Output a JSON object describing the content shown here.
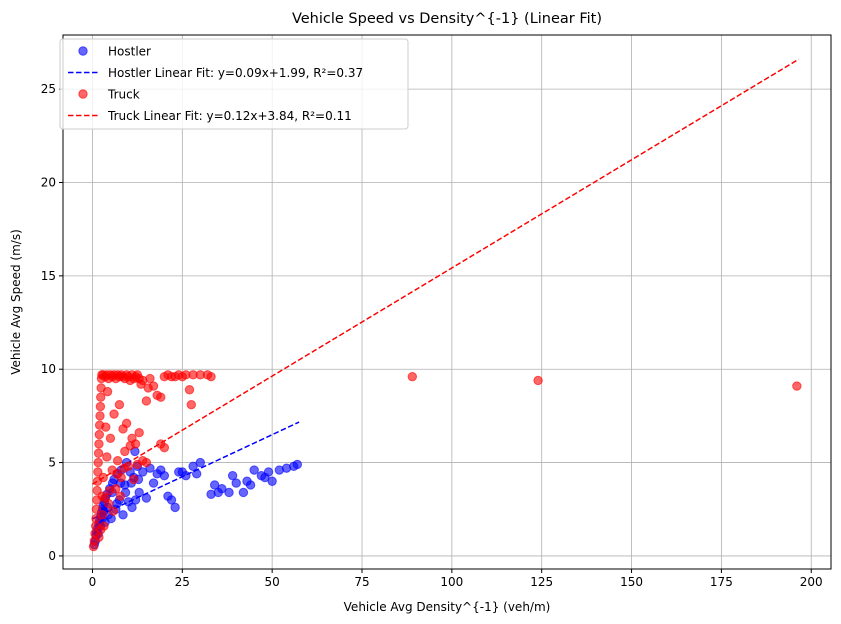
{
  "chart_data": {
    "type": "scatter",
    "title": "Vehicle Speed vs Density^{-1} (Linear Fit)",
    "xlabel": "Vehicle Avg Density^{-1} (veh/m)",
    "ylabel": "Vehicle Avg Speed (m/s)",
    "xlim": [
      -8.2,
      205.5
    ],
    "ylim": [
      -0.7,
      27.9
    ],
    "xticks": [
      0,
      25,
      50,
      75,
      100,
      125,
      150,
      175,
      200
    ],
    "yticks": [
      0,
      5,
      10,
      15,
      20,
      25
    ],
    "grid": true,
    "legend_position": "top-left",
    "series": [
      {
        "name": "Hostler",
        "kind": "scatter",
        "color": "#0000ff",
        "points": [
          [
            0.5,
            0.6
          ],
          [
            0.8,
            0.8
          ],
          [
            1.0,
            1.1
          ],
          [
            1.2,
            1.3
          ],
          [
            1.5,
            1.5
          ],
          [
            1.8,
            1.7
          ],
          [
            2.0,
            1.9
          ],
          [
            2.3,
            2.1
          ],
          [
            2.5,
            2.3
          ],
          [
            2.8,
            2.5
          ],
          [
            3.0,
            2.7
          ],
          [
            3.3,
            2.9
          ],
          [
            3.6,
            3.1
          ],
          [
            4.0,
            3.3
          ],
          [
            4.4,
            2.2
          ],
          [
            4.8,
            3.6
          ],
          [
            5.2,
            2.0
          ],
          [
            5.6,
            3.9
          ],
          [
            6.0,
            4.1
          ],
          [
            6.5,
            2.5
          ],
          [
            7.0,
            4.4
          ],
          [
            7.5,
            3.0
          ],
          [
            8.0,
            4.6
          ],
          [
            8.5,
            2.2
          ],
          [
            9.0,
            3.8
          ],
          [
            9.5,
            5.0
          ],
          [
            10.0,
            2.9
          ],
          [
            10.5,
            4.5
          ],
          [
            11.0,
            2.6
          ],
          [
            11.5,
            4.2
          ],
          [
            12.0,
            3.0
          ],
          [
            12.5,
            4.8
          ],
          [
            13.0,
            3.4
          ],
          [
            14.0,
            4.5
          ],
          [
            15.0,
            3.1
          ],
          [
            16.0,
            4.7
          ],
          [
            17.0,
            3.9
          ],
          [
            18.0,
            4.4
          ],
          [
            19.0,
            4.6
          ],
          [
            20.0,
            4.3
          ],
          [
            21.0,
            3.2
          ],
          [
            22.0,
            3.0
          ],
          [
            23.0,
            2.6
          ],
          [
            24.0,
            4.5
          ],
          [
            25.0,
            4.5
          ],
          [
            26.0,
            4.3
          ],
          [
            28.0,
            4.8
          ],
          [
            29.0,
            4.4
          ],
          [
            30.0,
            5.0
          ],
          [
            33.0,
            3.3
          ],
          [
            34.0,
            3.8
          ],
          [
            35.0,
            3.4
          ],
          [
            36.0,
            3.6
          ],
          [
            38.0,
            3.4
          ],
          [
            39.0,
            4.3
          ],
          [
            40.0,
            3.9
          ],
          [
            42.0,
            3.4
          ],
          [
            43.0,
            4.0
          ],
          [
            44.0,
            3.8
          ],
          [
            45.0,
            4.6
          ],
          [
            47.0,
            4.3
          ],
          [
            48.0,
            4.2
          ],
          [
            49.0,
            4.5
          ],
          [
            50.0,
            4.0
          ],
          [
            52.0,
            4.6
          ],
          [
            54.0,
            4.7
          ],
          [
            56.0,
            4.8
          ],
          [
            57.0,
            4.9
          ],
          [
            3.5,
            1.8
          ],
          [
            4.2,
            2.6
          ],
          [
            5.5,
            3.4
          ],
          [
            6.8,
            2.8
          ],
          [
            7.8,
            3.9
          ],
          [
            9.2,
            3.4
          ],
          [
            10.8,
            3.9
          ],
          [
            11.8,
            5.6
          ],
          [
            12.8,
            4.1
          ],
          [
            2.2,
            1.6
          ],
          [
            2.7,
            2.0
          ],
          [
            3.1,
            2.4
          ],
          [
            1.6,
            1.2
          ]
        ]
      },
      {
        "name": "Hostler Linear Fit: y=0.09x+1.99, R²=0.37",
        "kind": "line",
        "color": "#0000ff",
        "dash": true,
        "x": [
          0,
          57.5
        ],
        "y": [
          1.99,
          7.17
        ]
      },
      {
        "name": "Truck",
        "kind": "scatter",
        "color": "#ff0000",
        "points": [
          [
            0.3,
            0.5
          ],
          [
            0.5,
            0.8
          ],
          [
            0.7,
            1.2
          ],
          [
            0.9,
            1.6
          ],
          [
            1.0,
            2.0
          ],
          [
            1.1,
            2.5
          ],
          [
            1.2,
            3.0
          ],
          [
            1.3,
            3.5
          ],
          [
            1.4,
            4.0
          ],
          [
            1.5,
            4.5
          ],
          [
            1.6,
            5.0
          ],
          [
            1.7,
            5.5
          ],
          [
            1.8,
            6.0
          ],
          [
            1.9,
            6.5
          ],
          [
            2.0,
            7.0
          ],
          [
            2.1,
            7.5
          ],
          [
            2.2,
            8.0
          ],
          [
            2.3,
            8.5
          ],
          [
            2.4,
            9.0
          ],
          [
            2.5,
            9.5
          ],
          [
            2.6,
            9.7
          ],
          [
            3.0,
            9.7
          ],
          [
            3.5,
            9.6
          ],
          [
            4.0,
            9.7
          ],
          [
            4.5,
            9.5
          ],
          [
            5.0,
            9.7
          ],
          [
            5.5,
            9.6
          ],
          [
            6.0,
            9.7
          ],
          [
            6.5,
            9.5
          ],
          [
            7.0,
            9.7
          ],
          [
            7.5,
            9.6
          ],
          [
            8.0,
            9.7
          ],
          [
            8.5,
            9.6
          ],
          [
            9.0,
            9.5
          ],
          [
            9.5,
            9.7
          ],
          [
            10.0,
            9.6
          ],
          [
            10.5,
            9.4
          ],
          [
            11.0,
            9.7
          ],
          [
            11.5,
            9.5
          ],
          [
            12.0,
            9.6
          ],
          [
            12.5,
            9.7
          ],
          [
            13.0,
            9.5
          ],
          [
            13.5,
            9.2
          ],
          [
            14.0,
            9.4
          ],
          [
            15.0,
            8.3
          ],
          [
            15.5,
            9.0
          ],
          [
            16.0,
            9.5
          ],
          [
            17.0,
            9.1
          ],
          [
            18.0,
            8.6
          ],
          [
            19.0,
            8.5
          ],
          [
            20.0,
            9.6
          ],
          [
            21.0,
            9.7
          ],
          [
            22.0,
            9.6
          ],
          [
            23.0,
            9.6
          ],
          [
            24.0,
            9.7
          ],
          [
            25.0,
            9.6
          ],
          [
            26.0,
            9.7
          ],
          [
            27.0,
            8.9
          ],
          [
            27.5,
            8.1
          ],
          [
            28.0,
            9.7
          ],
          [
            30.0,
            9.7
          ],
          [
            32.0,
            9.7
          ],
          [
            33.0,
            9.6
          ],
          [
            3.0,
            4.2
          ],
          [
            3.5,
            3.1
          ],
          [
            4.0,
            5.3
          ],
          [
            4.5,
            2.8
          ],
          [
            5.0,
            6.3
          ],
          [
            5.5,
            4.6
          ],
          [
            6.0,
            7.6
          ],
          [
            6.5,
            3.6
          ],
          [
            7.0,
            5.1
          ],
          [
            7.5,
            8.1
          ],
          [
            8.0,
            4.2
          ],
          [
            8.5,
            6.8
          ],
          [
            9.0,
            5.6
          ],
          [
            9.5,
            7.1
          ],
          [
            10.0,
            4.8
          ],
          [
            10.5,
            5.9
          ],
          [
            11.0,
            6.3
          ],
          [
            11.5,
            4.1
          ],
          [
            12.0,
            6.0
          ],
          [
            12.5,
            4.9
          ],
          [
            13.0,
            6.6
          ],
          [
            14.0,
            5.1
          ],
          [
            15.0,
            5.0
          ],
          [
            19.0,
            6.0
          ],
          [
            20.0,
            5.8
          ],
          [
            2.8,
            2.2
          ],
          [
            3.2,
            1.6
          ],
          [
            4.8,
            3.5
          ],
          [
            5.8,
            2.4
          ],
          [
            6.8,
            4.4
          ],
          [
            7.8,
            3.2
          ],
          [
            8.8,
            4.7
          ],
          [
            1.8,
            1.0
          ],
          [
            2.3,
            1.4
          ],
          [
            2.7,
            3.2
          ],
          [
            3.7,
            6.9
          ],
          [
            4.2,
            8.8
          ],
          [
            89.0,
            9.6
          ],
          [
            124.0,
            9.4
          ],
          [
            196.0,
            9.1
          ]
        ]
      },
      {
        "name": "Truck Linear Fit: y=0.12x+3.84, R²=0.11",
        "kind": "line",
        "color": "#ff0000",
        "dash": true,
        "x": [
          0,
          196.5
        ],
        "y": [
          3.84,
          26.6
        ]
      }
    ]
  }
}
